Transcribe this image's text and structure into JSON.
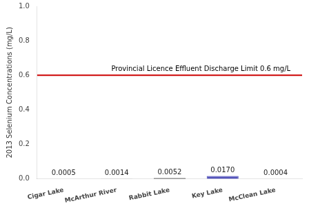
{
  "chart_data": {
    "type": "bar",
    "categories": [
      "Cigar Lake",
      "McArthur River",
      "Rabbit Lake",
      "Key Lake",
      "McClean Lake"
    ],
    "values": [
      0.0005,
      0.0014,
      0.0052,
      0.017,
      0.0004
    ],
    "value_labels": [
      "0.0005",
      "0.0014",
      "0.0052",
      "0.0170",
      "0.0004"
    ],
    "data_labels": true,
    "colors": [
      "#1a1a1a",
      "#1a1a1a",
      "#1a1a1a",
      "#5555bb",
      "#1a1a1a"
    ],
    "ylabel": "2013 Selenium Concentrations (mg/L)",
    "ylim": [
      0,
      1.0
    ],
    "yticks": [
      {
        "value": 0,
        "label": "0.0"
      },
      0.2,
      0.4,
      0.6,
      0.8,
      {
        "value": 1.0,
        "label": "1.0"
      }
    ],
    "hline": {
      "y": 0.6,
      "color": "#cc0000",
      "label": "Provincial Licence Effluent Discharge Limit 0.6 mg/L"
    },
    "grid": false
  }
}
